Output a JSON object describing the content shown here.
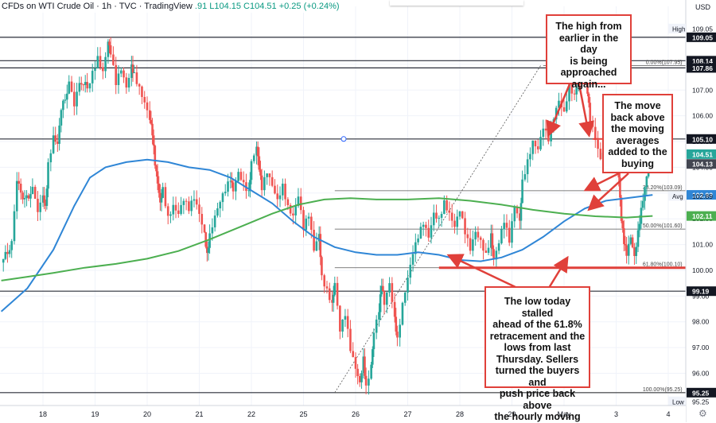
{
  "header": {
    "symbol": "CFDs on WTI Crude Oil · 1h · TVC · TradingView",
    "values": ".91  L104.15  C104.51  +0.25 (+0.24%)"
  },
  "currency": "USD",
  "colors": {
    "up": "#26a69a",
    "down": "#ef5350",
    "ma100": "#2f86d6",
    "ma200": "#4caf50",
    "annotation": "#e0403a",
    "grid": "#f0f3fa"
  },
  "callouts": [
    {
      "id": "high",
      "text": "The high from\nearlier in the day\nis being\napproached\nagain..."
    },
    {
      "id": "move",
      "text": "The move\nback above\nthe moving\naverages\nadded to the\nbuying"
    },
    {
      "id": "low",
      "text": "The low today stalled\nahead of the 61.8%\nretracement and the\nlows from last\nThursday.  Sellers\nturned the buyers and\npush price back above\nthe hourly moving"
    }
  ],
  "chart_data": {
    "type": "candlestick",
    "x_ticks": [
      "18",
      "19",
      "20",
      "21",
      "22",
      "25",
      "26",
      "27",
      "28",
      "29",
      "May",
      "3",
      "4"
    ],
    "x_tick_days": [
      0,
      1,
      2,
      3,
      4,
      5,
      6,
      7,
      8,
      9,
      10,
      11,
      12
    ],
    "ylim": [
      94.75,
      110.25
    ],
    "y_ticks": [
      96,
      97,
      98,
      99,
      100,
      101,
      102,
      103,
      104,
      105,
      106,
      107,
      108
    ],
    "y_tick_labels": [
      "96.00",
      "97.00",
      "98.00",
      "99.00",
      "100.00",
      "101.00",
      "102.00",
      "103.00",
      "104.00",
      "105.00",
      "106.00",
      "107.00",
      "108.00"
    ],
    "horizontal_lines": [
      109.05,
      108.14,
      107.86,
      105.1,
      99.19,
      95.25
    ],
    "horizontal_line_labels": [
      "109.05",
      "108.14",
      "107.86",
      "105.10",
      "99.19",
      "95.25"
    ],
    "price_labels": [
      {
        "label": "High",
        "price": 109.05,
        "tag": "109.05",
        "style": "plain"
      },
      {
        "label": "",
        "price": 109.05,
        "tag": "109.05",
        "style": "dark"
      },
      {
        "label": "",
        "price": 108.14,
        "tag": "108.14",
        "style": "dark"
      },
      {
        "label": "",
        "price": 107.86,
        "tag": "107.86",
        "style": "dark"
      },
      {
        "label": "",
        "price": 105.1,
        "tag": "105.10",
        "style": "dark"
      },
      {
        "label": "",
        "price": 104.51,
        "tag": "104.51",
        "style": "green"
      },
      {
        "label": "",
        "price": 104.13,
        "tag": "104.13",
        "style": "darkgray"
      },
      {
        "label": "",
        "price": 102.93,
        "tag": "102.93",
        "style": "blue"
      },
      {
        "label": "Avg",
        "price": 102.89,
        "tag": "102.89",
        "style": "plain"
      },
      {
        "label": "",
        "price": 102.11,
        "tag": "102.11",
        "style": "greenma"
      },
      {
        "label": "",
        "price": 99.19,
        "tag": "99.19",
        "style": "dark"
      },
      {
        "label": "",
        "price": 95.25,
        "tag": "95.25",
        "style": "dark"
      },
      {
        "label": "Low",
        "price": 95.25,
        "tag": "95.25",
        "style": "plain"
      }
    ],
    "fib_levels": [
      {
        "label": "0.00%(107.95)",
        "price": 107.95
      },
      {
        "label": "38.20%(103.09)",
        "price": 103.09
      },
      {
        "label": "50.00%(101.60)",
        "price": 101.6
      },
      {
        "label": "61.80%(100.10)",
        "price": 100.1
      },
      {
        "label": "100.00%(95.25)",
        "price": 95.25
      }
    ],
    "fib_x_day": [
      9.6,
      12.3
    ],
    "trend_line": {
      "from": [
        5.6,
        95.25
      ],
      "to": [
        9.55,
        107.95
      ]
    },
    "red_support_line": {
      "from_day": 7.6,
      "to_day": 12.6,
      "price": 100.1
    },
    "series": [
      {
        "name": "",
        "type": "candles",
        "price_points": [
          [
            -0.8,
            100.3
          ],
          [
            -0.6,
            101.0
          ],
          [
            -0.5,
            103.4
          ],
          [
            -0.35,
            102.7
          ],
          [
            -0.2,
            103.1
          ],
          [
            -0.1,
            102.4
          ],
          [
            0,
            103.0
          ],
          [
            0.05,
            102.5
          ],
          [
            0.1,
            104.1
          ],
          [
            0.2,
            105.1
          ],
          [
            0.28,
            104.8
          ],
          [
            0.35,
            106.2
          ],
          [
            0.5,
            107.2
          ],
          [
            0.6,
            106.5
          ],
          [
            0.7,
            107.4
          ],
          [
            0.85,
            107.1
          ],
          [
            0.95,
            107.7
          ],
          [
            1.05,
            108.2
          ],
          [
            1.15,
            107.6
          ],
          [
            1.25,
            108.8
          ],
          [
            1.3,
            108.4
          ],
          [
            1.4,
            107.3
          ],
          [
            1.5,
            107.9
          ],
          [
            1.6,
            107.2
          ],
          [
            1.7,
            108.0
          ],
          [
            1.75,
            107.6
          ],
          [
            1.85,
            107.0
          ],
          [
            1.95,
            106.4
          ],
          [
            2.05,
            105.8
          ],
          [
            2.1,
            105.3
          ],
          [
            2.15,
            104.2
          ],
          [
            2.2,
            103.5
          ],
          [
            2.25,
            102.7
          ],
          [
            2.3,
            103.2
          ],
          [
            2.4,
            102.0
          ],
          [
            2.5,
            102.4
          ],
          [
            2.6,
            102.1
          ],
          [
            2.7,
            102.7
          ],
          [
            2.8,
            102.4
          ],
          [
            2.9,
            102.9
          ],
          [
            3.0,
            102.3
          ],
          [
            3.1,
            101.5
          ],
          [
            3.15,
            100.6
          ],
          [
            3.2,
            101.3
          ],
          [
            3.3,
            102.0
          ],
          [
            3.4,
            102.6
          ],
          [
            3.5,
            103.1
          ],
          [
            3.6,
            103.6
          ],
          [
            3.65,
            103.2
          ],
          [
            3.75,
            103.9
          ],
          [
            3.85,
            103.4
          ],
          [
            3.95,
            103.0
          ],
          [
            4.0,
            104.1
          ],
          [
            4.1,
            104.7
          ],
          [
            4.15,
            103.9
          ],
          [
            4.2,
            103.2
          ],
          [
            4.3,
            103.9
          ],
          [
            4.4,
            103.4
          ],
          [
            4.5,
            102.8
          ],
          [
            4.6,
            103.3
          ],
          [
            4.7,
            102.4
          ],
          [
            4.8,
            102.0
          ],
          [
            4.9,
            102.8
          ],
          [
            5.0,
            101.6
          ],
          [
            5.1,
            102.2
          ],
          [
            5.2,
            100.9
          ],
          [
            5.3,
            101.5
          ],
          [
            5.35,
            99.8
          ],
          [
            5.45,
            99.2
          ],
          [
            5.55,
            98.6
          ],
          [
            5.6,
            99.4
          ],
          [
            5.7,
            97.6
          ],
          [
            5.8,
            98.3
          ],
          [
            5.9,
            97.0
          ],
          [
            6.0,
            96.3
          ],
          [
            6.08,
            95.7
          ],
          [
            6.15,
            96.6
          ],
          [
            6.2,
            95.4
          ],
          [
            6.3,
            96.2
          ],
          [
            6.35,
            97.5
          ],
          [
            6.45,
            98.4
          ],
          [
            6.5,
            99.5
          ],
          [
            6.55,
            98.8
          ],
          [
            6.65,
            99.6
          ],
          [
            6.75,
            98.2
          ],
          [
            6.8,
            97.3
          ],
          [
            6.9,
            98.6
          ],
          [
            7.0,
            99.6
          ],
          [
            7.1,
            100.6
          ],
          [
            7.2,
            101.3
          ],
          [
            7.3,
            101.9
          ],
          [
            7.4,
            101.4
          ],
          [
            7.5,
            102.3
          ],
          [
            7.6,
            102.0
          ],
          [
            7.7,
            102.6
          ],
          [
            7.8,
            102.1
          ],
          [
            7.9,
            101.6
          ],
          [
            8.0,
            102.3
          ],
          [
            8.1,
            101.5
          ],
          [
            8.2,
            100.9
          ],
          [
            8.3,
            101.6
          ],
          [
            8.4,
            101.2
          ],
          [
            8.5,
            100.6
          ],
          [
            8.6,
            101.3
          ],
          [
            8.65,
            100.3
          ],
          [
            8.75,
            101.0
          ],
          [
            8.85,
            101.9
          ],
          [
            8.95,
            101.2
          ],
          [
            9.05,
            102.6
          ],
          [
            9.15,
            102.0
          ],
          [
            9.2,
            103.5
          ],
          [
            9.3,
            104.2
          ],
          [
            9.4,
            104.9
          ],
          [
            9.5,
            104.6
          ],
          [
            9.6,
            105.5
          ],
          [
            9.7,
            105.1
          ],
          [
            9.8,
            106.0
          ],
          [
            9.9,
            106.7
          ],
          [
            10.0,
            106.2
          ],
          [
            10.1,
            107.2
          ],
          [
            10.2,
            106.7
          ],
          [
            10.28,
            107.5
          ],
          [
            10.35,
            107.9
          ],
          [
            10.45,
            106.9
          ],
          [
            10.5,
            105.9
          ],
          [
            10.6,
            105.2
          ],
          [
            10.7,
            104.4
          ],
          [
            10.8,
            105.0
          ],
          [
            10.9,
            104.1
          ],
          [
            11.0,
            104.6
          ],
          [
            11.05,
            103.5
          ],
          [
            11.1,
            101.9
          ],
          [
            11.15,
            101.1
          ],
          [
            11.2,
            100.7
          ],
          [
            11.28,
            101.4
          ],
          [
            11.35,
            100.6
          ],
          [
            11.42,
            101.5
          ],
          [
            11.48,
            102.3
          ],
          [
            11.55,
            103.1
          ],
          [
            11.62,
            104.0
          ],
          [
            11.7,
            104.51
          ]
        ]
      },
      {
        "name": "",
        "type": "line",
        "color": "ma100",
        "points": [
          [
            -0.8,
            98.4
          ],
          [
            -0.3,
            99.3
          ],
          [
            0.2,
            100.8
          ],
          [
            0.6,
            102.5
          ],
          [
            0.9,
            103.6
          ],
          [
            1.2,
            104.0
          ],
          [
            1.6,
            104.2
          ],
          [
            2.0,
            104.3
          ],
          [
            2.4,
            104.2
          ],
          [
            2.8,
            104.0
          ],
          [
            3.2,
            103.9
          ],
          [
            3.6,
            103.6
          ],
          [
            4.0,
            103.1
          ],
          [
            4.4,
            102.6
          ],
          [
            4.8,
            101.9
          ],
          [
            5.2,
            101.3
          ],
          [
            5.6,
            100.9
          ],
          [
            6.0,
            100.7
          ],
          [
            6.4,
            100.6
          ],
          [
            6.8,
            100.6
          ],
          [
            7.2,
            100.7
          ],
          [
            7.6,
            100.6
          ],
          [
            8.0,
            100.4
          ],
          [
            8.4,
            100.35
          ],
          [
            8.8,
            100.5
          ],
          [
            9.2,
            100.8
          ],
          [
            9.6,
            101.3
          ],
          [
            10.0,
            101.9
          ],
          [
            10.4,
            102.4
          ],
          [
            10.8,
            102.7
          ],
          [
            11.2,
            102.8
          ],
          [
            11.7,
            102.93
          ]
        ]
      },
      {
        "name": "",
        "type": "line",
        "color": "ma200",
        "points": [
          [
            -0.8,
            99.6
          ],
          [
            -0.3,
            99.75
          ],
          [
            0.2,
            99.9
          ],
          [
            0.8,
            100.1
          ],
          [
            1.4,
            100.25
          ],
          [
            2.0,
            100.45
          ],
          [
            2.6,
            100.75
          ],
          [
            3.2,
            101.2
          ],
          [
            3.8,
            101.7
          ],
          [
            4.4,
            102.2
          ],
          [
            4.9,
            102.55
          ],
          [
            5.4,
            102.75
          ],
          [
            5.9,
            102.8
          ],
          [
            6.4,
            102.75
          ],
          [
            7.0,
            102.75
          ],
          [
            7.6,
            102.8
          ],
          [
            8.2,
            102.7
          ],
          [
            8.8,
            102.55
          ],
          [
            9.4,
            102.35
          ],
          [
            10.0,
            102.2
          ],
          [
            10.6,
            102.1
          ],
          [
            11.2,
            102.05
          ],
          [
            11.7,
            102.11
          ]
        ]
      }
    ]
  }
}
